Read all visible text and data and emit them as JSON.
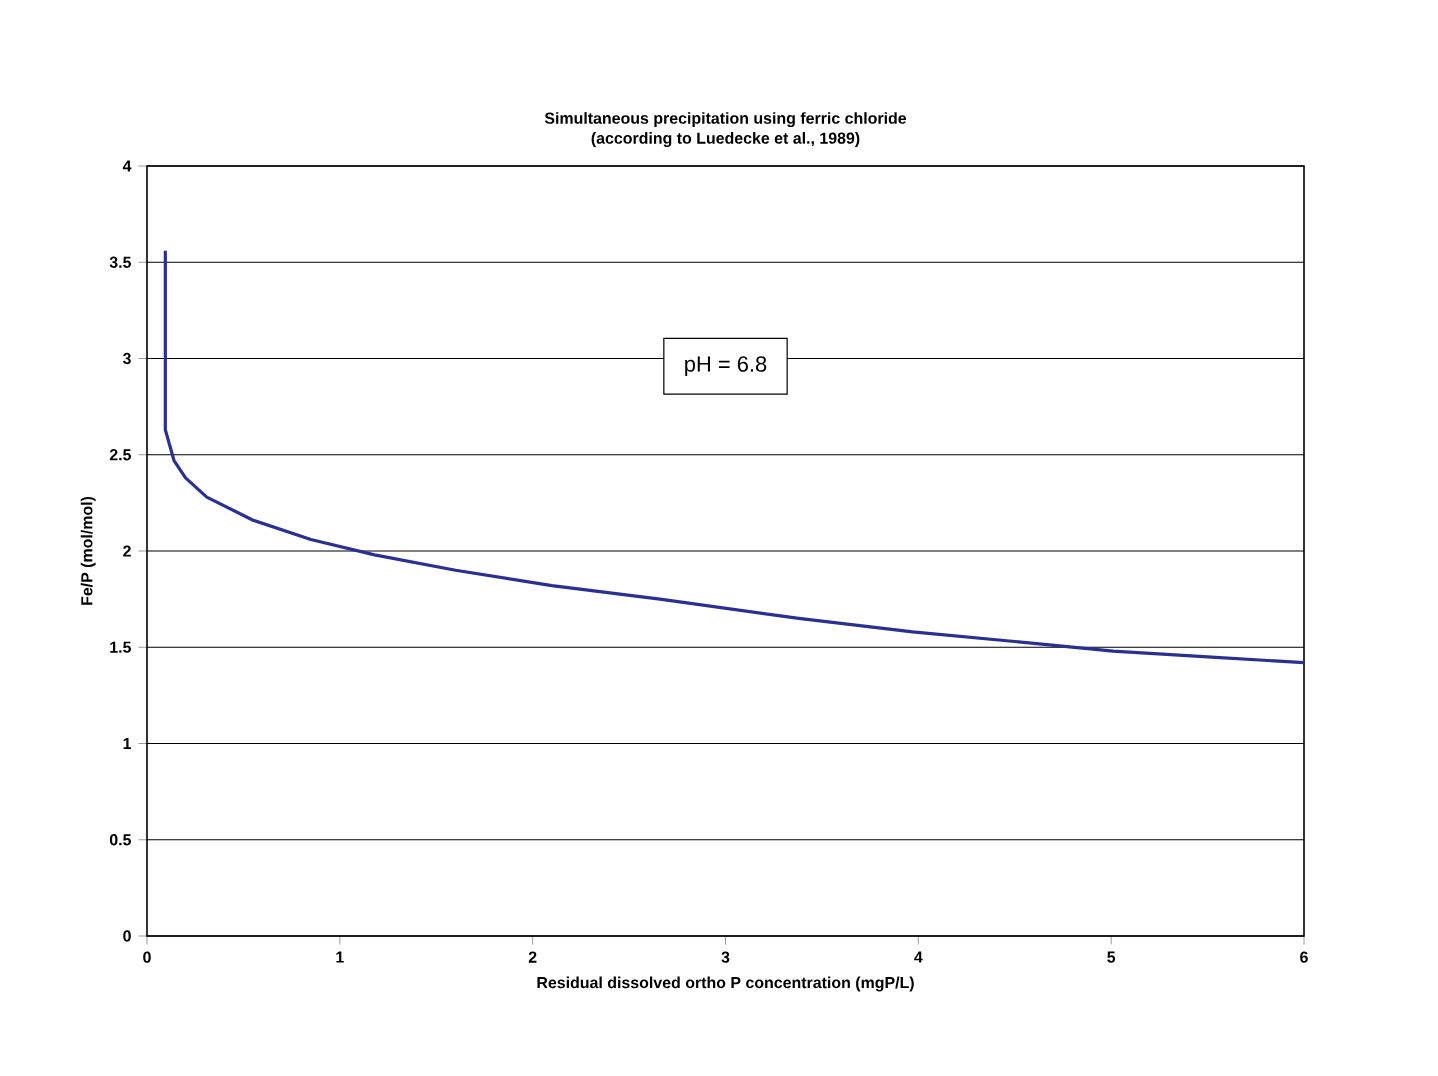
{
  "chart_data": {
    "type": "line",
    "title": "Simultaneous precipitation using ferric chloride",
    "subtitle": "(according to Luedecke et al., 1989)",
    "xlabel": "Residual dissolved ortho P concentration (mgP/L)",
    "ylabel": "Fe/P (mol/mol)",
    "annotations": [
      "pH = 6.8"
    ],
    "xlim": [
      0,
      6
    ],
    "ylim": [
      0,
      4
    ],
    "xticks": [
      0,
      1,
      2,
      3,
      4,
      5,
      6
    ],
    "yticks": [
      0,
      0.5,
      1,
      1.5,
      2,
      2.5,
      3,
      3.5,
      4
    ],
    "grid": "y",
    "marker": "none",
    "line_style": "solid",
    "series": [
      {
        "color": "#2b2f8f",
        "x": [
          0.095,
          0.095,
          0.14,
          0.2,
          0.31,
          0.55,
          0.85,
          1.18,
          1.6,
          2.1,
          2.66,
          3.38,
          3.97,
          4.5,
          5.01,
          5.5,
          6.0
        ],
        "values": [
          3.56,
          2.63,
          2.47,
          2.38,
          2.28,
          2.16,
          2.06,
          1.98,
          1.9,
          1.82,
          1.75,
          1.65,
          1.58,
          1.53,
          1.48,
          1.45,
          1.42
        ]
      }
    ]
  }
}
